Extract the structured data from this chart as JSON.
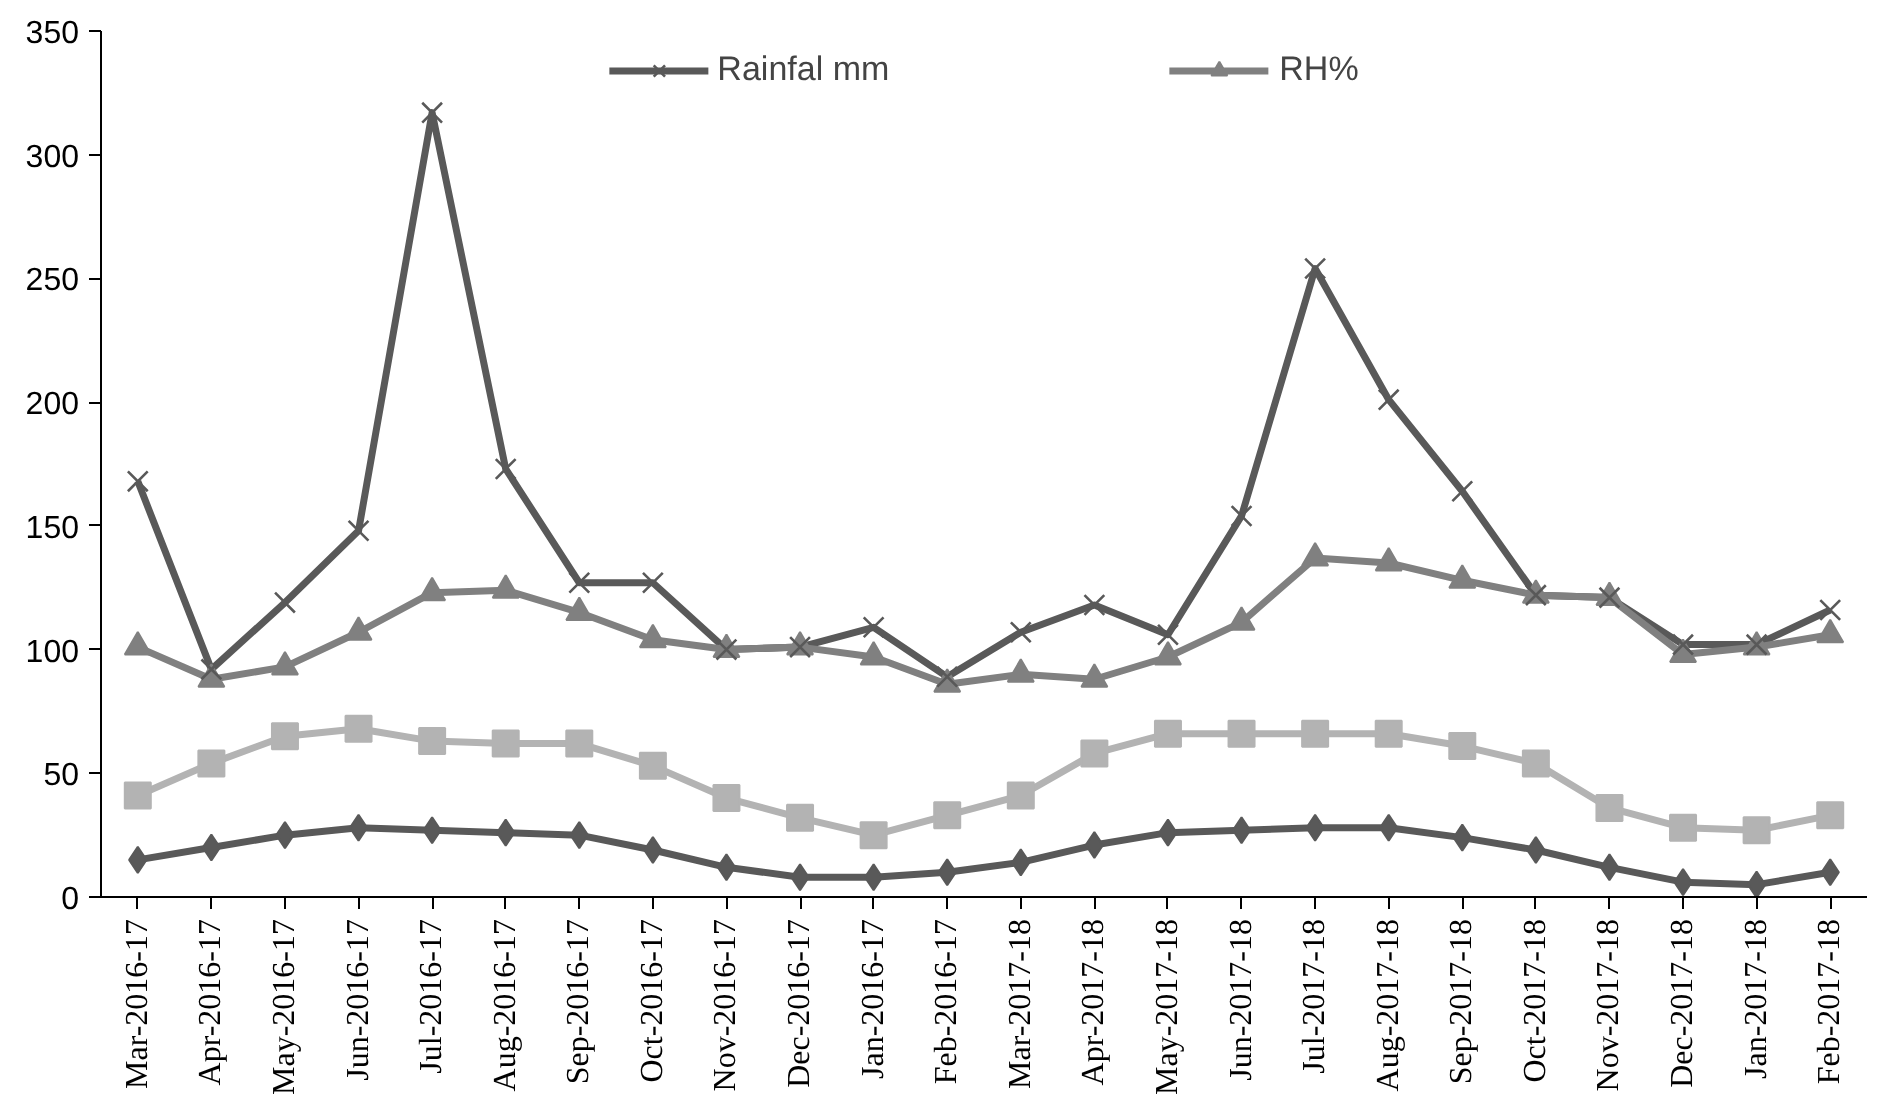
{
  "chart_data": {
    "type": "line",
    "categories": [
      "Mar-2016-17",
      "Apr-2016-17",
      "May-2016-17",
      "Jun-2016-17",
      "Jul-2016-17",
      "Aug-2016-17",
      "Sep-2016-17",
      "Oct-2016-17",
      "Nov-2016-17",
      "Dec-2016-17",
      "Jan-2016-17",
      "Feb-2016-17",
      "Mar-2017-18",
      "Apr-2017-18",
      "May-2017-18",
      "Jun-2017-18",
      "Jul-2017-18",
      "Aug-2017-18",
      "Sep-2017-18",
      "Oct-2017-18",
      "Nov-2017-18",
      "Dec-2017-18",
      "Jan-2017-18",
      "Feb-2017-18"
    ],
    "series": [
      {
        "name": "Rainfal mm",
        "color": "#595959",
        "marker": "cross",
        "values": [
          168,
          92,
          119,
          148,
          317,
          173,
          127,
          127,
          100,
          101,
          109,
          89,
          107,
          118,
          106,
          154,
          254,
          201,
          164,
          122,
          121,
          102,
          102,
          116
        ]
      },
      {
        "name": "RH%",
        "color": "#808080",
        "marker": "triangle",
        "values": [
          101,
          88,
          93,
          107,
          123,
          124,
          115,
          104,
          100,
          101,
          97,
          86,
          90,
          88,
          97,
          111,
          137,
          135,
          128,
          122,
          121,
          98,
          101,
          106
        ]
      },
      {
        "color": "#b3b3b3",
        "marker": "square",
        "values": [
          41,
          54,
          65,
          68,
          63,
          62,
          62,
          53,
          40,
          32,
          25,
          33,
          41,
          58,
          66,
          66,
          66,
          66,
          61,
          54,
          36,
          28,
          27,
          33
        ]
      },
      {
        "color": "#595959",
        "marker": "diamond",
        "values": [
          15,
          20,
          25,
          28,
          27,
          26,
          25,
          19,
          12,
          8,
          8,
          10,
          14,
          21,
          26,
          27,
          28,
          28,
          24,
          19,
          12,
          6,
          5,
          10
        ]
      }
    ],
    "ylim": [
      0,
      350
    ],
    "yticks": [
      0,
      50,
      100,
      150,
      200,
      250,
      300,
      350
    ],
    "grid": false,
    "legend": "top",
    "line_style": "solid"
  }
}
